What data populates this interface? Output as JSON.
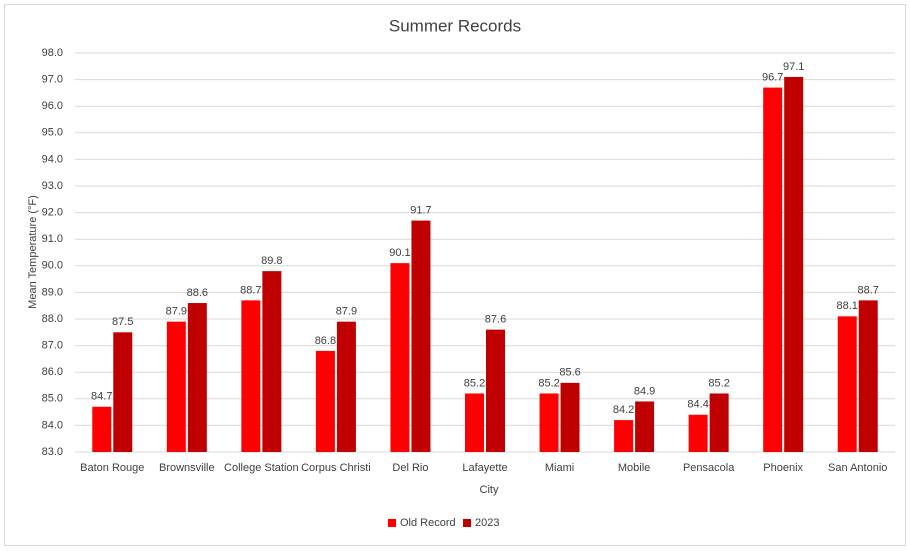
{
  "chart_data": {
    "type": "bar",
    "title": "Summer Records",
    "x_label": "City",
    "y_label": "Mean Temperature (°F)",
    "categories": [
      "Baton Rouge",
      "Brownsville",
      "College Station",
      "Corpus Christi",
      "Del Rio",
      "Lafayette",
      "Miami",
      "Mobile",
      "Pensacola",
      "Phoenix",
      "San Antonio"
    ],
    "series": [
      {
        "name": "Old Record",
        "color": "#ff0000",
        "values": [
          84.7,
          87.9,
          88.7,
          86.8,
          90.1,
          85.2,
          85.2,
          84.2,
          84.4,
          96.7,
          88.1
        ]
      },
      {
        "name": "2023",
        "color": "#c00000",
        "values": [
          87.5,
          88.6,
          89.8,
          87.9,
          91.7,
          87.6,
          85.6,
          84.9,
          85.2,
          97.1,
          88.7
        ]
      }
    ],
    "ylim": [
      83,
      98
    ],
    "yticks": [
      {
        "value": 83,
        "label": "83.0"
      },
      {
        "value": 84,
        "label": "84.0"
      },
      {
        "value": 85,
        "label": "85.0"
      },
      {
        "value": 86,
        "label": "86.0"
      },
      {
        "value": 87,
        "label": "87.0"
      },
      {
        "value": 88,
        "label": "88.0"
      },
      {
        "value": 89,
        "label": "89.0"
      },
      {
        "value": 90,
        "label": "90.0"
      },
      {
        "value": 91,
        "label": "91.0"
      },
      {
        "value": 92,
        "label": "92.0"
      },
      {
        "value": 93,
        "label": "93.0"
      },
      {
        "value": 94,
        "label": "94.0"
      },
      {
        "value": 95,
        "label": "95.0"
      },
      {
        "value": 96,
        "label": "96.0"
      },
      {
        "value": 97,
        "label": "97.0"
      },
      {
        "value": 98,
        "label": "98.0"
      }
    ],
    "grid": true,
    "legend": "bottom"
  }
}
